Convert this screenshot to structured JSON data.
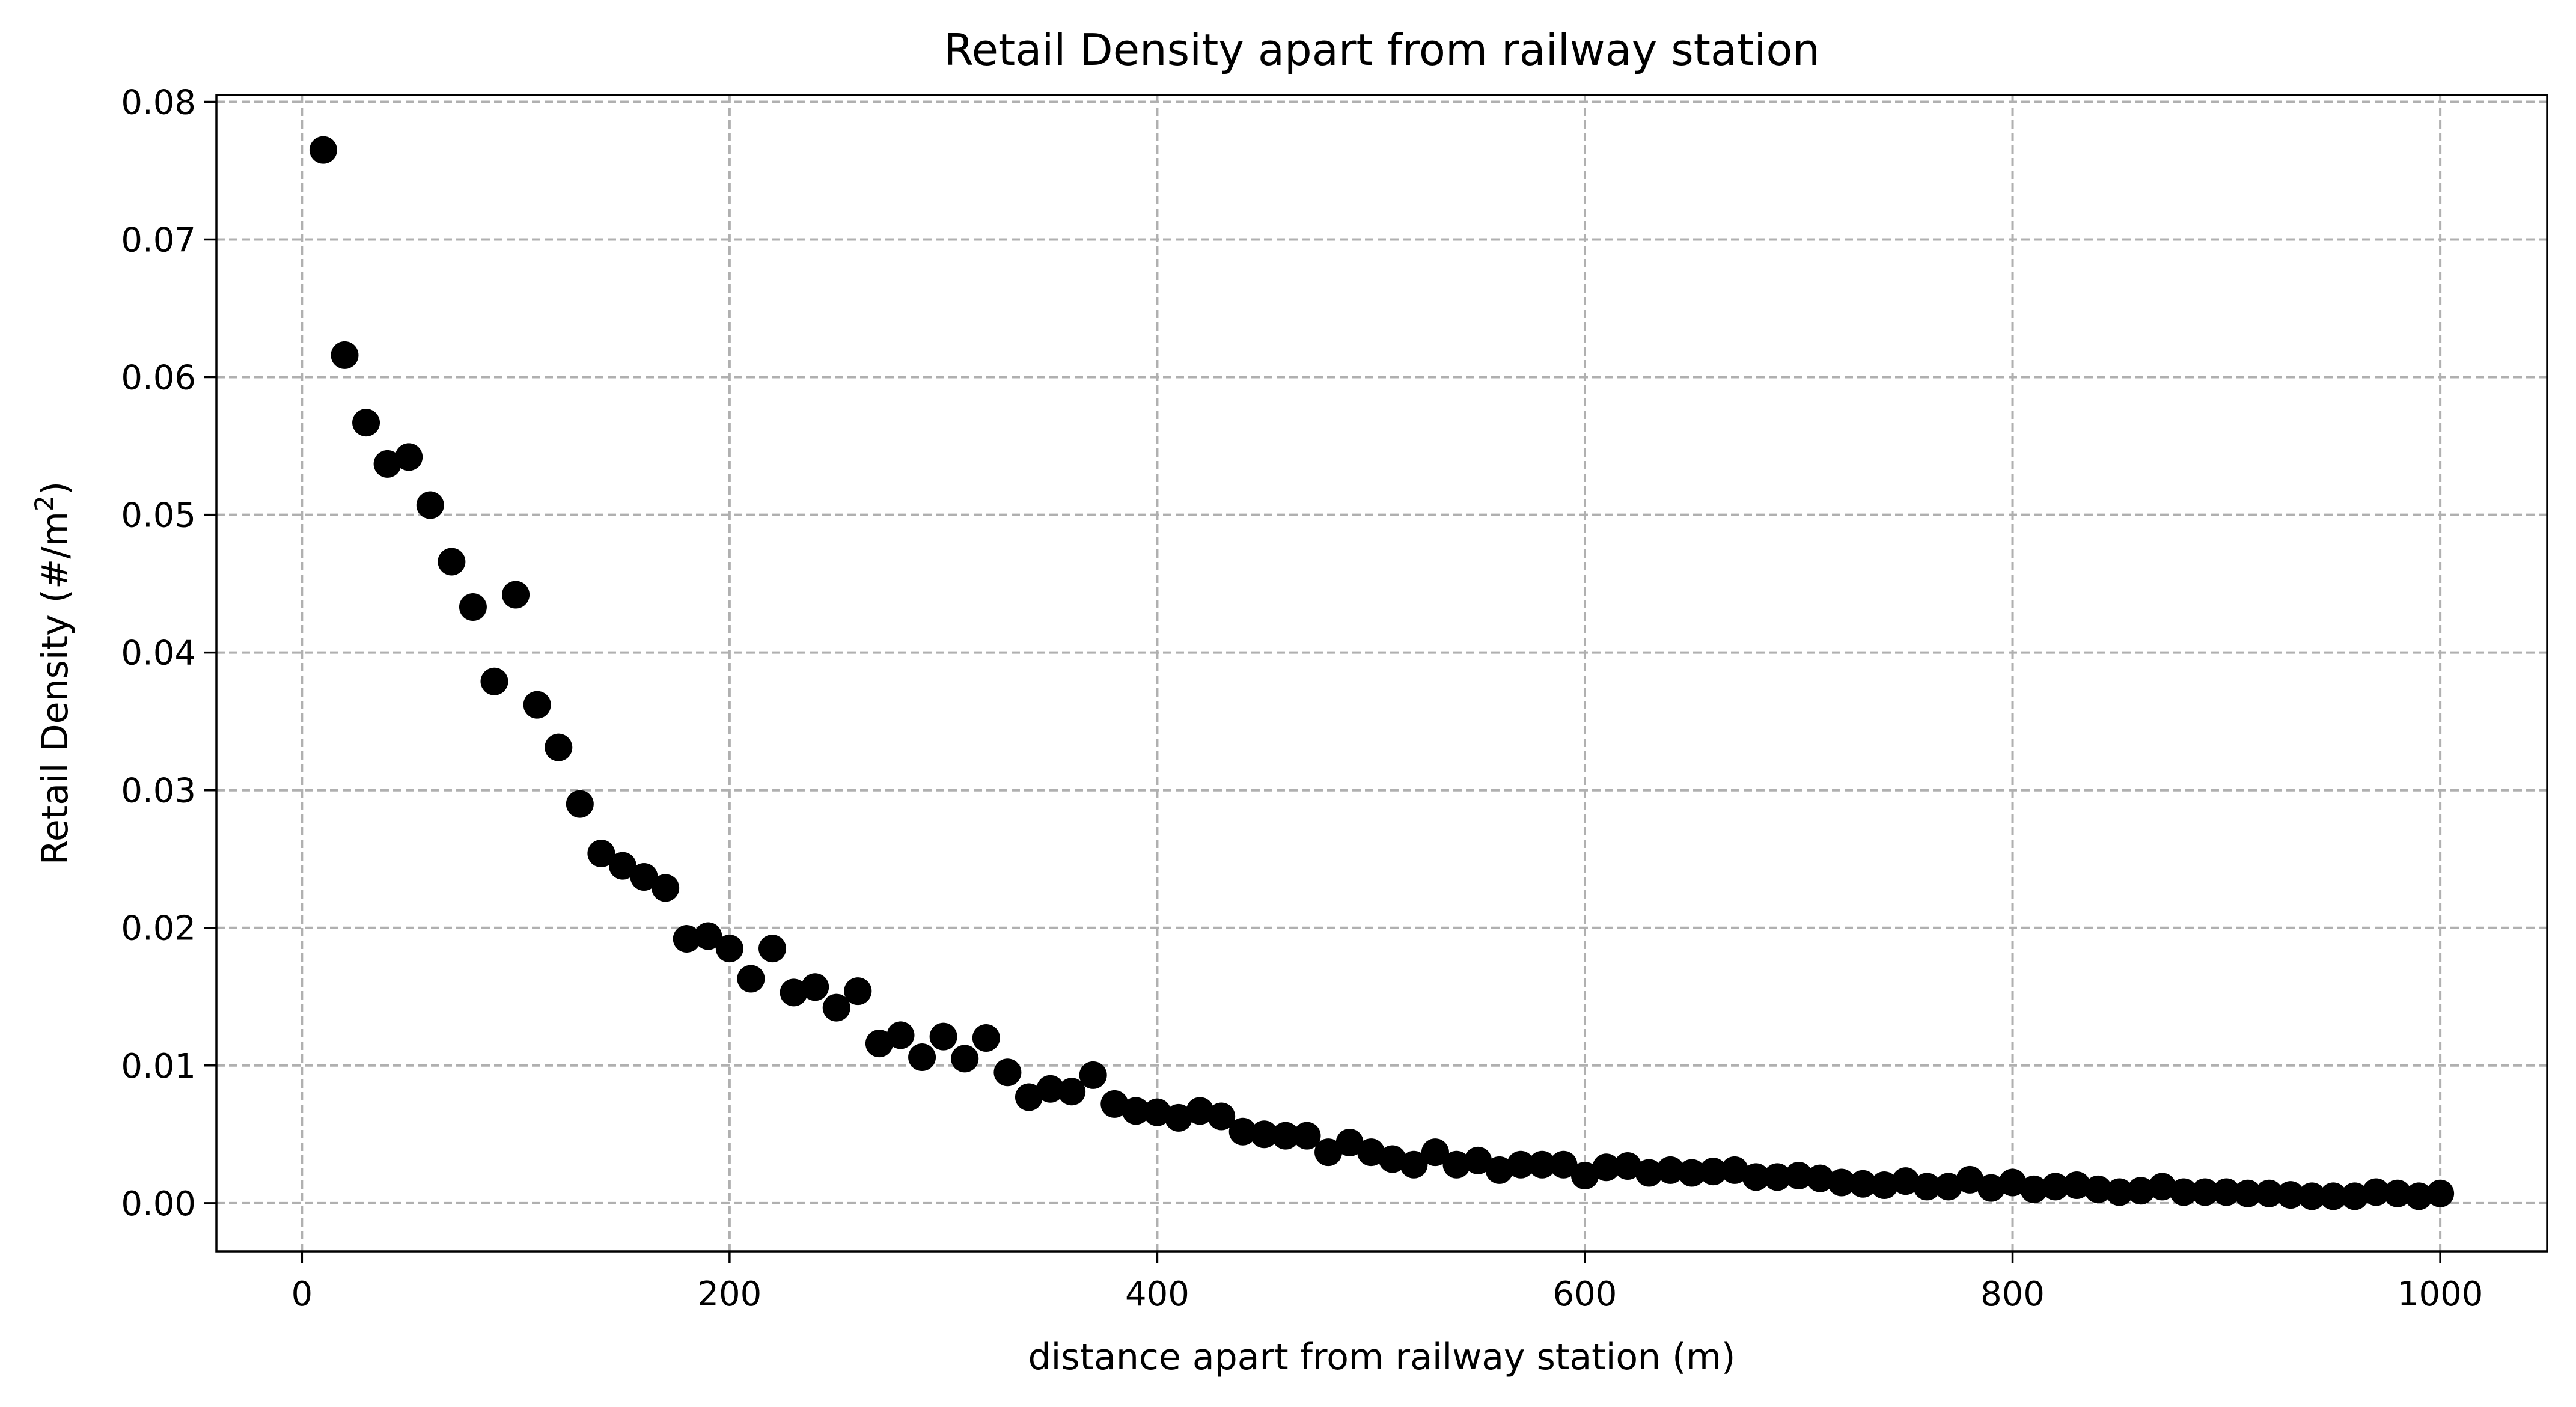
{
  "chart_data": {
    "type": "scatter",
    "title": "Retail Density apart from railway station",
    "xlabel": "distance apart from railway station (m)",
    "ylabel_main": "Retail Density (#/m",
    "ylabel_sup": "2",
    "ylabel_end": ")",
    "xlim": [
      -40,
      1050
    ],
    "ylim": [
      -0.0035,
      0.0805
    ],
    "xticks": [
      0,
      200,
      400,
      600,
      800,
      1000
    ],
    "xtick_labels": [
      "0",
      "200",
      "400",
      "600",
      "800",
      "1000"
    ],
    "yticks": [
      0.0,
      0.01,
      0.02,
      0.03,
      0.04,
      0.05,
      0.06,
      0.07,
      0.08
    ],
    "ytick_labels": [
      "0.00",
      "0.01",
      "0.02",
      "0.03",
      "0.04",
      "0.05",
      "0.06",
      "0.07",
      "0.08"
    ],
    "grid": true,
    "marker_color": "#000000",
    "points": [
      [
        10,
        0.0765
      ],
      [
        20,
        0.0616
      ],
      [
        30,
        0.0567
      ],
      [
        40,
        0.0537
      ],
      [
        50,
        0.0542
      ],
      [
        60,
        0.0507
      ],
      [
        70,
        0.0466
      ],
      [
        80,
        0.0433
      ],
      [
        90,
        0.0379
      ],
      [
        100,
        0.0442
      ],
      [
        110,
        0.0362
      ],
      [
        120,
        0.0331
      ],
      [
        130,
        0.029
      ],
      [
        140,
        0.0254
      ],
      [
        150,
        0.0245
      ],
      [
        160,
        0.0237
      ],
      [
        170,
        0.0229
      ],
      [
        180,
        0.0192
      ],
      [
        190,
        0.0194
      ],
      [
        200,
        0.0185
      ],
      [
        210,
        0.0163
      ],
      [
        220,
        0.0185
      ],
      [
        230,
        0.0153
      ],
      [
        240,
        0.0157
      ],
      [
        250,
        0.0142
      ],
      [
        260,
        0.0154
      ],
      [
        270,
        0.0116
      ],
      [
        280,
        0.0122
      ],
      [
        290,
        0.0106
      ],
      [
        300,
        0.0121
      ],
      [
        310,
        0.0105
      ],
      [
        320,
        0.012
      ],
      [
        330,
        0.0095
      ],
      [
        340,
        0.0077
      ],
      [
        350,
        0.0083
      ],
      [
        360,
        0.0081
      ],
      [
        370,
        0.0093
      ],
      [
        380,
        0.0072
      ],
      [
        390,
        0.0067
      ],
      [
        400,
        0.0066
      ],
      [
        410,
        0.0062
      ],
      [
        420,
        0.0067
      ],
      [
        430,
        0.0063
      ],
      [
        440,
        0.0052
      ],
      [
        450,
        0.005
      ],
      [
        460,
        0.0049
      ],
      [
        470,
        0.0049
      ],
      [
        480,
        0.0037
      ],
      [
        490,
        0.0044
      ],
      [
        500,
        0.0037
      ],
      [
        510,
        0.0032
      ],
      [
        520,
        0.0028
      ],
      [
        530,
        0.0037
      ],
      [
        540,
        0.0028
      ],
      [
        550,
        0.0031
      ],
      [
        560,
        0.0024
      ],
      [
        570,
        0.0028
      ],
      [
        580,
        0.0028
      ],
      [
        590,
        0.0028
      ],
      [
        600,
        0.002
      ],
      [
        610,
        0.0026
      ],
      [
        620,
        0.0027
      ],
      [
        630,
        0.0022
      ],
      [
        640,
        0.0024
      ],
      [
        650,
        0.0022
      ],
      [
        660,
        0.0023
      ],
      [
        670,
        0.0024
      ],
      [
        680,
        0.0019
      ],
      [
        690,
        0.0019
      ],
      [
        700,
        0.002
      ],
      [
        710,
        0.0018
      ],
      [
        720,
        0.0015
      ],
      [
        730,
        0.0014
      ],
      [
        740,
        0.0013
      ],
      [
        750,
        0.0016
      ],
      [
        760,
        0.0012
      ],
      [
        770,
        0.0012
      ],
      [
        780,
        0.0017
      ],
      [
        790,
        0.0011
      ],
      [
        800,
        0.0015
      ],
      [
        810,
        0.001
      ],
      [
        820,
        0.0012
      ],
      [
        830,
        0.0013
      ],
      [
        840,
        0.001
      ],
      [
        850,
        0.0008
      ],
      [
        860,
        0.0009
      ],
      [
        870,
        0.0012
      ],
      [
        880,
        0.0008
      ],
      [
        890,
        0.0008
      ],
      [
        900,
        0.0008
      ],
      [
        910,
        0.0007
      ],
      [
        920,
        0.0007
      ],
      [
        930,
        0.0006
      ],
      [
        940,
        0.0005
      ],
      [
        950,
        0.0005
      ],
      [
        960,
        0.0005
      ],
      [
        970,
        0.0008
      ],
      [
        980,
        0.0007
      ],
      [
        990,
        0.0005
      ],
      [
        1000,
        0.0007
      ]
    ]
  }
}
